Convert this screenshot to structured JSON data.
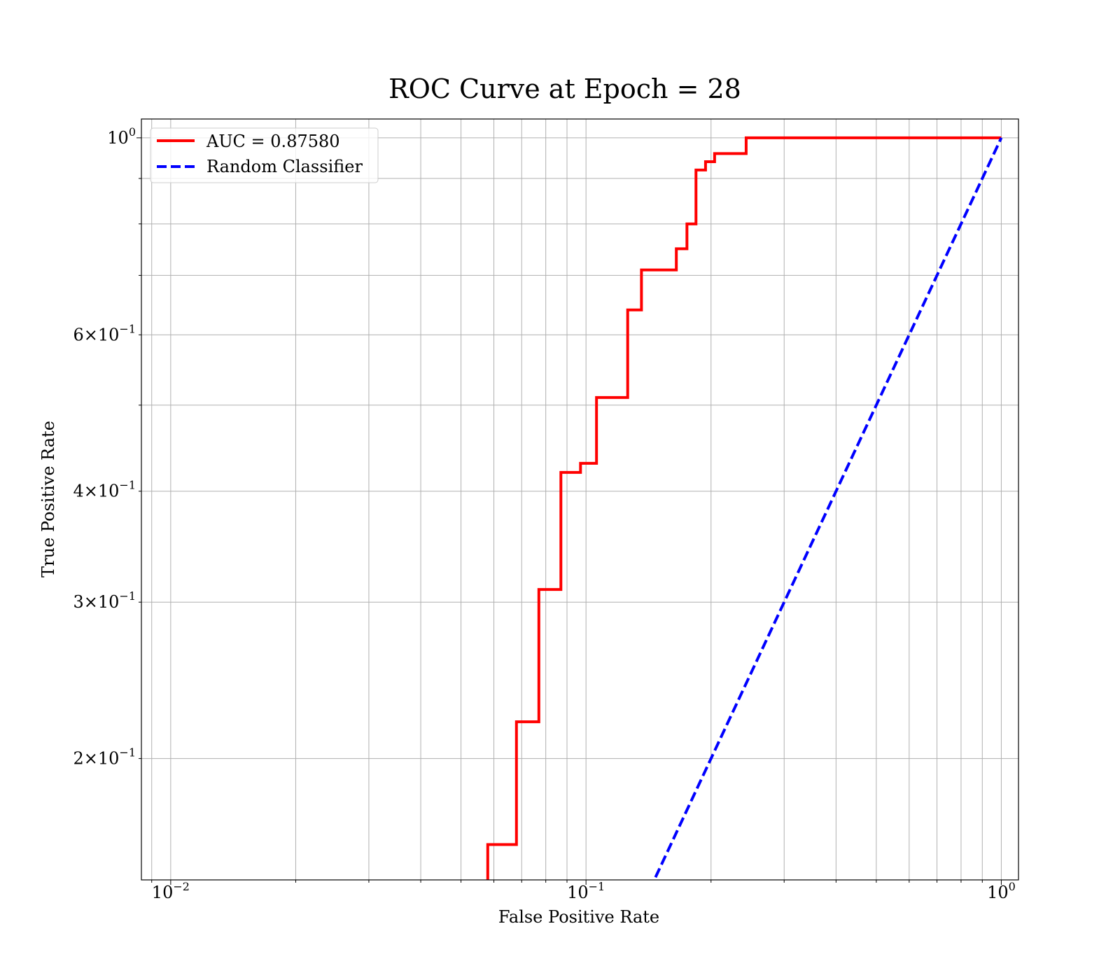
{
  "chart_data": {
    "type": "line",
    "title": "ROC Curve at Epoch = 28",
    "xlabel": "False Positive Rate",
    "ylabel": "True Positive Rate",
    "xscale": "log",
    "yscale": "log",
    "xlim": [
      0.0085,
      1.1
    ],
    "ylim": [
      0.146,
      1.05
    ],
    "grid": "both (major and minor)",
    "legend_position": "upper left",
    "x_ticks": [
      {
        "base": "10",
        "exp": "−2"
      },
      {
        "base": "10",
        "exp": "−1"
      },
      {
        "base": "10",
        "exp": "0"
      }
    ],
    "y_ticks": [
      {
        "mantissa": "2×10",
        "exp": "−1",
        "value": 0.2
      },
      {
        "mantissa": "3×10",
        "exp": "−1",
        "value": 0.3
      },
      {
        "mantissa": "4×10",
        "exp": "−1",
        "value": 0.4
      },
      {
        "mantissa": "6×10",
        "exp": "−1",
        "value": 0.6
      },
      {
        "mantissa": "10",
        "exp": "0",
        "value": 1.0
      }
    ],
    "series": [
      {
        "name": "AUC = 0.87580",
        "color": "#ff0000",
        "style": "solid",
        "x": [
          0.058,
          0.058,
          0.068,
          0.068,
          0.077,
          0.077,
          0.087,
          0.087,
          0.097,
          0.097,
          0.106,
          0.106,
          0.126,
          0.126,
          0.136,
          0.136,
          0.165,
          0.165,
          0.175,
          0.175,
          0.184,
          0.184,
          0.194,
          0.194,
          0.204,
          0.204,
          0.243,
          0.243,
          1.0
        ],
        "y": [
          0.146,
          0.16,
          0.16,
          0.22,
          0.22,
          0.31,
          0.31,
          0.42,
          0.42,
          0.43,
          0.43,
          0.51,
          0.51,
          0.64,
          0.64,
          0.71,
          0.71,
          0.75,
          0.75,
          0.8,
          0.8,
          0.92,
          0.92,
          0.94,
          0.94,
          0.96,
          0.96,
          1.0,
          1.0
        ]
      },
      {
        "name": "Random Classifier",
        "color": "#0000ff",
        "style": "dashed",
        "x": [
          0.147,
          1.0
        ],
        "y": [
          0.147,
          1.0
        ]
      }
    ]
  }
}
